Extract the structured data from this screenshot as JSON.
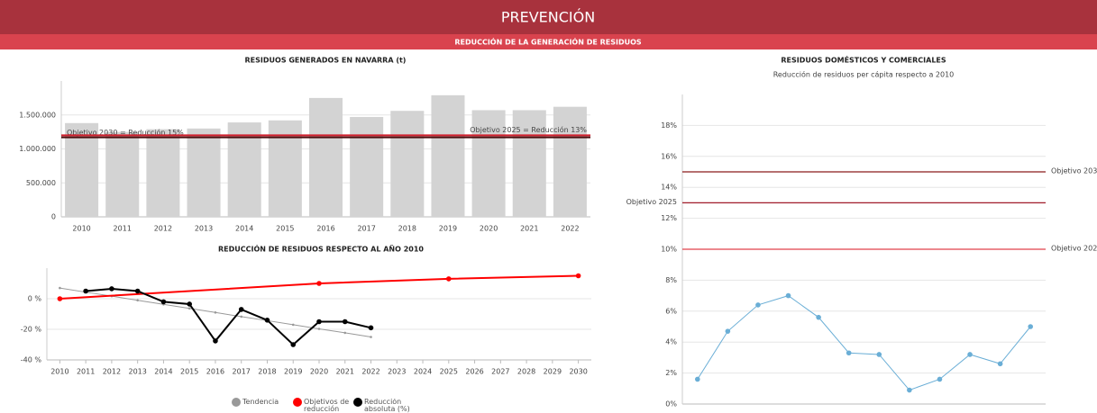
{
  "header": {
    "title": "PREVENCIÓN",
    "subtitle": "REDUCCIÓN DE LA GENERACIÓN DE RESIDUOS"
  },
  "chart_data": [
    {
      "type": "bar",
      "title": "RESIDUOS GENERADOS EN NAVARRA (t)",
      "categories": [
        "2010",
        "2011",
        "2012",
        "2013",
        "2014",
        "2015",
        "2016",
        "2017",
        "2018",
        "2019",
        "2020",
        "2021",
        "2022"
      ],
      "values": [
        1380000,
        1250000,
        1290000,
        1300000,
        1390000,
        1420000,
        1750000,
        1470000,
        1560000,
        1790000,
        1570000,
        1570000,
        1620000
      ],
      "color": "#d3d3d3",
      "ylim": [
        0,
        2000000
      ],
      "yticks": [
        0,
        {
          "value": 500000,
          "label": "500.000"
        },
        {
          "value": 1000000,
          "label": "1.000.000"
        },
        {
          "value": 1500000,
          "label": "1.500.000"
        }
      ],
      "grid": true,
      "reference_lines": [
        {
          "label": "Objetivo 2030 = Reducción 15%",
          "value": 1170000,
          "color": "#4a0d0d"
        },
        {
          "label": "Objetivo 2025 = Reducción 13%",
          "value": 1200000,
          "color": "#d0202e"
        }
      ]
    },
    {
      "type": "line",
      "title": "REDUCCIÓN DE RESIDUOS RESPECTO AL AÑO 2010",
      "xlim": [
        2009.5,
        2030.5
      ],
      "xticks": [
        2010,
        2011,
        2012,
        2013,
        2014,
        2015,
        2016,
        2017,
        2018,
        2019,
        2020,
        2021,
        2022,
        2023,
        2024,
        2025,
        2026,
        2027,
        2028,
        2029,
        2030
      ],
      "ylim": [
        -40,
        20
      ],
      "yticks": [
        {
          "value": 0,
          "label": "0 %"
        },
        {
          "value": -20,
          "label": "-20 %"
        },
        {
          "value": -40,
          "label": "-40 %"
        }
      ],
      "grid": true,
      "series": [
        {
          "name": "Tendencia",
          "color": "#999999",
          "x": [
            2010,
            2011,
            2012,
            2013,
            2014,
            2015,
            2016,
            2017,
            2018,
            2019,
            2020,
            2021,
            2022
          ],
          "values": [
            7,
            4.3,
            1.7,
            -1,
            -3.7,
            -6.3,
            -9,
            -11.7,
            -14.3,
            -17,
            -19.7,
            -22.3,
            -25
          ]
        },
        {
          "name": "Objetivos de reducción",
          "color": "#ff0000",
          "x": [
            2010,
            2020,
            2025,
            2030
          ],
          "values": [
            0,
            10,
            13,
            15
          ]
        },
        {
          "name": "Reducción absoluta (%)",
          "color": "#000000",
          "x": [
            2011,
            2012,
            2013,
            2014,
            2015,
            2016,
            2017,
            2018,
            2019,
            2020,
            2021,
            2022
          ],
          "values": [
            5,
            6.5,
            5,
            -2,
            -3.5,
            -27.6,
            -7,
            -14,
            -30,
            -15,
            -15,
            -19
          ]
        }
      ]
    },
    {
      "type": "line",
      "title": "RESIDUOS DOMÉSTICOS Y COMERCIALES",
      "subtitle": "Reducción de residuos per cápita respecto a 2010",
      "categories": [
        null,
        null,
        null,
        null,
        null,
        null,
        null,
        null,
        null,
        null,
        null,
        null
      ],
      "ylim": [
        0,
        20
      ],
      "yticks": [
        {
          "value": 0,
          "label": "0%"
        },
        {
          "value": 2,
          "label": "2%"
        },
        {
          "value": 4,
          "label": "4%"
        },
        {
          "value": 6,
          "label": "6%"
        },
        {
          "value": 8,
          "label": "8%"
        },
        {
          "value": 10,
          "label": "10%"
        },
        {
          "value": 12,
          "label": "12%"
        },
        {
          "value": 14,
          "label": "14%"
        },
        {
          "value": 16,
          "label": "16%"
        },
        {
          "value": 18,
          "label": "18%"
        }
      ],
      "grid": true,
      "series": [
        {
          "color": "#6aaed6",
          "values": [
            1.6,
            4.7,
            6.4,
            7.0,
            5.6,
            3.3,
            3.2,
            0.9,
            1.6,
            3.2,
            2.6,
            5.0
          ]
        }
      ],
      "reference_lines": [
        {
          "label": "Objetivo 2030",
          "value": 15,
          "color": "#8b1a1a"
        },
        {
          "label": "Objetivo 2025",
          "value": 13,
          "color": "#a01c2a"
        },
        {
          "label": "Objetivo 2020",
          "value": 10,
          "color": "#e0404a"
        }
      ]
    }
  ]
}
